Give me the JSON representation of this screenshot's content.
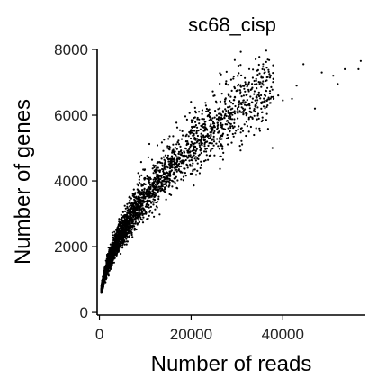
{
  "chart_data": {
    "type": "scatter",
    "title": "sc68_cisp",
    "xlabel": "Number of reads",
    "ylabel": "Number of genes",
    "xlim": [
      -500,
      58000
    ],
    "ylim": [
      -80,
      8000
    ],
    "xticks": [
      0,
      20000,
      40000
    ],
    "xtick_labels": [
      "0",
      "20000",
      "40000"
    ],
    "yticks": [
      0,
      2000,
      4000,
      6000,
      8000
    ],
    "ytick_labels": [
      "0",
      "2000",
      "4000",
      "6000",
      "8000"
    ],
    "grid": false,
    "marker_color": "#000000",
    "trend": {
      "form": "power",
      "coef": 29,
      "exponent": 0.52,
      "spread": 0.09,
      "xmin": 400,
      "xmax": 38000,
      "count": 3200
    },
    "x": [
      42000,
      43000,
      44500,
      47000,
      48500,
      51000,
      52000,
      53500,
      56500,
      57000,
      38000,
      39000,
      40000,
      35500,
      36500,
      37500,
      30000,
      33000,
      34000
    ],
    "y": [
      6500,
      6900,
      7550,
      6200,
      7300,
      7200,
      6950,
      7400,
      7400,
      7650,
      6500,
      6600,
      6450,
      6400,
      6250,
      6550,
      6100,
      5950,
      6300
    ]
  }
}
